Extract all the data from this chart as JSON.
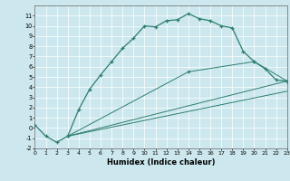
{
  "title": "",
  "xlabel": "Humidex (Indice chaleur)",
  "bg_color": "#cce8ee",
  "line_color": "#2e7d6e",
  "xlim": [
    0,
    23
  ],
  "ylim": [
    -2,
    12
  ],
  "xticks": [
    0,
    1,
    2,
    3,
    4,
    5,
    6,
    7,
    8,
    9,
    10,
    11,
    12,
    13,
    14,
    15,
    16,
    17,
    18,
    19,
    20,
    21,
    22,
    23
  ],
  "yticks": [
    -2,
    -1,
    0,
    1,
    2,
    3,
    4,
    5,
    6,
    7,
    8,
    9,
    10,
    11
  ],
  "curve1_x": [
    0,
    1,
    2,
    3,
    4,
    5,
    6,
    7,
    8,
    9,
    10,
    11,
    12,
    13,
    14,
    15,
    16,
    17,
    18,
    19,
    20,
    21,
    22,
    23
  ],
  "curve1_y": [
    0.3,
    -0.8,
    -1.4,
    -0.8,
    1.8,
    3.8,
    5.2,
    6.5,
    7.8,
    8.8,
    10.0,
    9.9,
    10.5,
    10.6,
    11.2,
    10.7,
    10.5,
    10.0,
    9.8,
    7.5,
    6.5,
    5.8,
    4.7,
    4.6
  ],
  "curve2_x": [
    3,
    23
  ],
  "curve2_y": [
    -0.8,
    4.6
  ],
  "curve3_x": [
    3,
    23
  ],
  "curve3_y": [
    -0.8,
    3.6
  ],
  "curve4_x": [
    3,
    14,
    20,
    23
  ],
  "curve4_y": [
    -0.8,
    5.5,
    6.5,
    4.6
  ]
}
